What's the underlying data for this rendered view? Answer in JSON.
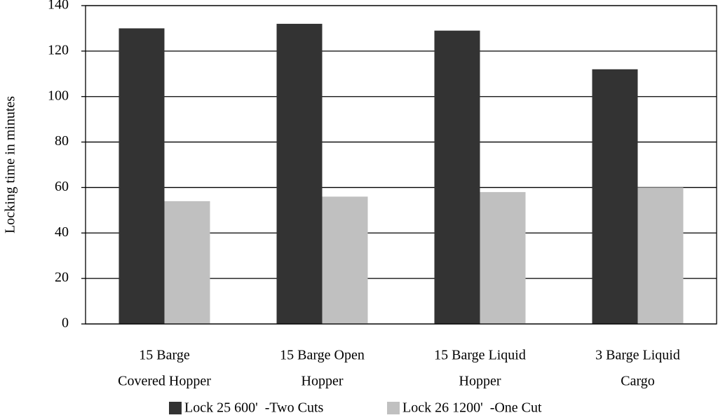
{
  "chart_data": {
    "type": "bar",
    "y_label": "Locking time in minutes",
    "categories": [
      [
        "15 Barge",
        "Covered Hopper"
      ],
      [
        "15 Barge Open",
        "Hopper"
      ],
      [
        "15 Barge Liquid",
        "Hopper"
      ],
      [
        "3 Barge Liquid",
        "Cargo"
      ]
    ],
    "series": [
      {
        "name": "Lock 25 600'  -Two Cuts",
        "color": "#333333",
        "values": [
          130,
          132,
          129,
          112
        ]
      },
      {
        "name": "Lock 26 1200'  -One Cut",
        "color": "#c0c0c0",
        "values": [
          54,
          56,
          58,
          60
        ]
      }
    ],
    "ylim": [
      0,
      140
    ],
    "yticks": [
      0,
      20,
      40,
      60,
      80,
      100,
      120,
      140
    ],
    "grid": true,
    "legend": "bottom"
  }
}
